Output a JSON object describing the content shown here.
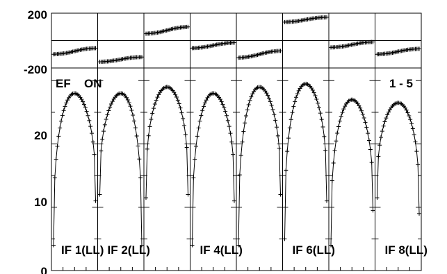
{
  "chart_data": {
    "type": "line",
    "header_left": "EF",
    "header_mid": "ON",
    "header_right": "1 - 5",
    "phase_panel": {
      "ylim": [
        -200,
        200
      ],
      "tick_labels": [
        "200",
        "-200"
      ]
    },
    "amp_panel": {
      "ylim": [
        0,
        32
      ],
      "tick_labels": [
        "20",
        "10",
        "0"
      ]
    },
    "if_labels": [
      "IF 1(LL)",
      "IF 2(LL)",
      "IF 4(LL)",
      "IF 6(LL)",
      "IF 8(LL)"
    ],
    "if_panel_index": [
      0,
      1,
      3,
      5,
      7
    ],
    "panels": [
      {
        "amp_peak": 28.0,
        "amp_left_end": 4.0,
        "amp_right_end": 11.0,
        "phase_start": -100,
        "phase_end": -55
      },
      {
        "amp_peak": 28.0,
        "amp_left_end": 12.0,
        "amp_right_end": 4.0,
        "phase_start": -155,
        "phase_end": -120
      },
      {
        "amp_peak": 29.0,
        "amp_left_end": 11.5,
        "amp_right_end": 12.0,
        "phase_start": 50,
        "phase_end": 100
      },
      {
        "amp_peak": 28.0,
        "amp_left_end": 4.0,
        "amp_right_end": 11.0,
        "phase_start": -55,
        "phase_end": -15
      },
      {
        "amp_peak": 29.0,
        "amp_left_end": 4.0,
        "amp_right_end": 12.0,
        "phase_start": -125,
        "phase_end": -75
      },
      {
        "amp_peak": 29.5,
        "amp_left_end": 5.0,
        "amp_right_end": 11.0,
        "phase_start": 135,
        "phase_end": 170
      },
      {
        "amp_peak": 27.0,
        "amp_left_end": 4.0,
        "amp_right_end": 9.5,
        "phase_start": -50,
        "phase_end": -10
      },
      {
        "amp_peak": 26.5,
        "amp_left_end": 11.5,
        "amp_right_end": 9.0,
        "phase_start": -100,
        "phase_end": -60
      }
    ]
  }
}
